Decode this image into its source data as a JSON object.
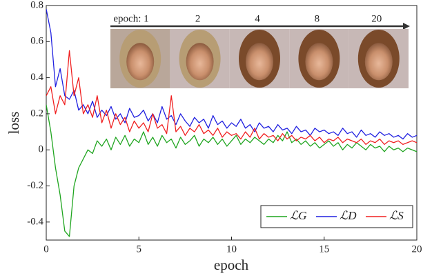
{
  "chart_data": {
    "type": "line",
    "xlabel": "epoch",
    "ylabel": "loss",
    "inset_labels": [
      "epoch: 1",
      "2",
      "4",
      "8",
      "20"
    ],
    "xlim": [
      0,
      20
    ],
    "ylim": [
      -0.5,
      0.8
    ],
    "xticks": [
      0,
      5,
      10,
      15,
      20
    ],
    "yticks": [
      -0.4,
      -0.2,
      0,
      0.2,
      0.4,
      0.6,
      0.8
    ],
    "legend": "lower right",
    "x": [
      0,
      0.25,
      0.5,
      0.75,
      1,
      1.25,
      1.5,
      1.75,
      2,
      2.25,
      2.5,
      2.75,
      3,
      3.25,
      3.5,
      3.75,
      4,
      4.25,
      4.5,
      4.75,
      5,
      5.25,
      5.5,
      5.75,
      6,
      6.25,
      6.5,
      6.75,
      7,
      7.25,
      7.5,
      7.75,
      8,
      8.25,
      8.5,
      8.75,
      9,
      9.25,
      9.5,
      9.75,
      10,
      10.25,
      10.5,
      10.75,
      11,
      11.25,
      11.5,
      11.75,
      12,
      12.25,
      12.5,
      12.75,
      13,
      13.25,
      13.5,
      13.75,
      14,
      14.25,
      14.5,
      14.75,
      15,
      15.25,
      15.5,
      15.75,
      16,
      16.25,
      16.5,
      16.75,
      17,
      17.25,
      17.5,
      17.75,
      18,
      18.25,
      18.5,
      18.75,
      19,
      19.25,
      19.5,
      19.75,
      20
    ],
    "series": [
      {
        "name": "ℒG",
        "color": "#1fa51f",
        "values": [
          0.25,
          0.1,
          -0.1,
          -0.25,
          -0.45,
          -0.48,
          -0.2,
          -0.1,
          -0.05,
          0.0,
          -0.02,
          0.05,
          0.02,
          0.06,
          0.0,
          0.07,
          0.03,
          0.08,
          0.02,
          0.06,
          0.04,
          0.1,
          0.03,
          0.07,
          0.02,
          0.08,
          0.04,
          0.06,
          0.01,
          0.07,
          0.03,
          0.05,
          0.08,
          0.02,
          0.06,
          0.04,
          0.07,
          0.03,
          0.06,
          0.02,
          0.05,
          0.08,
          0.03,
          0.06,
          0.04,
          0.07,
          0.05,
          0.03,
          0.06,
          0.04,
          0.08,
          0.05,
          0.1,
          0.04,
          0.06,
          0.03,
          0.05,
          0.02,
          0.04,
          0.01,
          0.03,
          0.05,
          0.02,
          0.04,
          0.0,
          0.03,
          0.01,
          0.04,
          0.02,
          0.0,
          0.03,
          0.01,
          0.02,
          -0.01,
          0.02,
          0.0,
          0.01,
          -0.01,
          0.01,
          0.0,
          -0.01
        ]
      },
      {
        "name": "ℒD",
        "color": "#2020e0",
        "values": [
          0.78,
          0.65,
          0.35,
          0.45,
          0.3,
          0.28,
          0.33,
          0.22,
          0.25,
          0.2,
          0.27,
          0.18,
          0.22,
          0.19,
          0.24,
          0.17,
          0.2,
          0.15,
          0.23,
          0.18,
          0.19,
          0.22,
          0.16,
          0.2,
          0.15,
          0.24,
          0.17,
          0.19,
          0.14,
          0.2,
          0.16,
          0.13,
          0.18,
          0.15,
          0.17,
          0.12,
          0.19,
          0.14,
          0.16,
          0.12,
          0.15,
          0.13,
          0.17,
          0.12,
          0.14,
          0.1,
          0.15,
          0.12,
          0.13,
          0.1,
          0.14,
          0.11,
          0.12,
          0.09,
          0.13,
          0.1,
          0.11,
          0.08,
          0.12,
          0.1,
          0.11,
          0.09,
          0.1,
          0.08,
          0.12,
          0.09,
          0.1,
          0.07,
          0.11,
          0.08,
          0.09,
          0.07,
          0.1,
          0.08,
          0.09,
          0.07,
          0.08,
          0.06,
          0.09,
          0.07,
          0.08
        ]
      },
      {
        "name": "ℒS",
        "color": "#f02020",
        "values": [
          0.3,
          0.35,
          0.2,
          0.3,
          0.25,
          0.55,
          0.3,
          0.4,
          0.2,
          0.25,
          0.18,
          0.3,
          0.15,
          0.22,
          0.12,
          0.2,
          0.14,
          0.18,
          0.1,
          0.16,
          0.12,
          0.15,
          0.1,
          0.2,
          0.12,
          0.14,
          0.09,
          0.3,
          0.1,
          0.13,
          0.08,
          0.12,
          0.1,
          0.14,
          0.09,
          0.11,
          0.08,
          0.12,
          0.07,
          0.1,
          0.08,
          0.09,
          0.06,
          0.1,
          0.07,
          0.12,
          0.06,
          0.09,
          0.07,
          0.08,
          0.05,
          0.09,
          0.06,
          0.08,
          0.05,
          0.07,
          0.06,
          0.08,
          0.05,
          0.07,
          0.04,
          0.06,
          0.05,
          0.07,
          0.04,
          0.06,
          0.05,
          0.04,
          0.06,
          0.03,
          0.05,
          0.04,
          0.06,
          0.03,
          0.05,
          0.04,
          0.05,
          0.03,
          0.04,
          0.05,
          0.04
        ]
      }
    ]
  }
}
